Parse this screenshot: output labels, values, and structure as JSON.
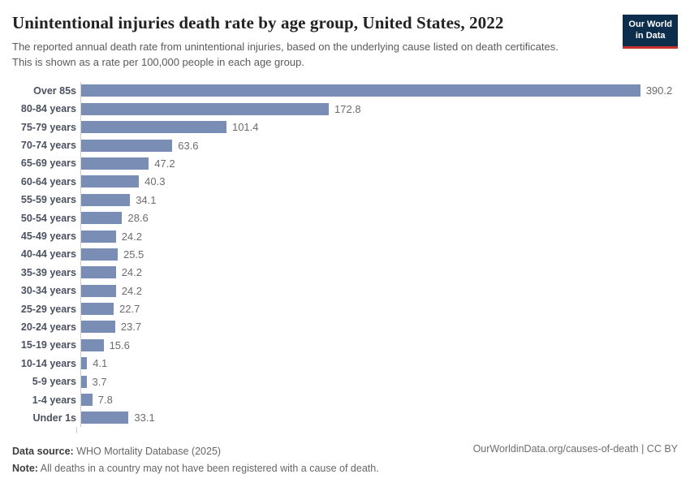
{
  "header": {
    "title": "Unintentional injuries death rate by age group, United States, 2022",
    "subtitle": "The reported annual death rate from unintentional injuries, based on the underlying cause listed on death certificates. This is shown as a rate per 100,000 people in each age group.",
    "logo": {
      "line1": "Our World",
      "line2": "in Data",
      "bg_color": "#0d2d4c",
      "accent_color": "#c8322d"
    }
  },
  "chart_data": {
    "type": "bar",
    "orientation": "horizontal",
    "title": "Unintentional injuries death rate by age group, United States, 2022",
    "xlabel": "",
    "ylabel": "",
    "xlim": [
      0,
      400
    ],
    "grid": false,
    "legend": false,
    "bar_color": "#7a8db5",
    "categories": [
      "Over 85s",
      "80-84 years",
      "75-79 years",
      "70-74 years",
      "65-69 years",
      "60-64 years",
      "55-59 years",
      "50-54 years",
      "45-49 years",
      "40-44 years",
      "35-39 years",
      "30-34 years",
      "25-29 years",
      "20-24 years",
      "15-19 years",
      "10-14 years",
      "5-9 years",
      "1-4 years",
      "Under 1s"
    ],
    "values": [
      390.2,
      172.8,
      101.4,
      63.6,
      47.2,
      40.3,
      34.1,
      28.6,
      24.2,
      25.5,
      24.2,
      24.2,
      22.7,
      23.7,
      15.6,
      4.1,
      3.7,
      7.8,
      33.1
    ]
  },
  "footer": {
    "source_label": "Data source:",
    "source_text": "WHO Mortality Database (2025)",
    "note_label": "Note:",
    "note_text": "All deaths in a country may not have been registered with a cause of death.",
    "link": "OurWorldinData.org/causes-of-death | CC BY"
  }
}
